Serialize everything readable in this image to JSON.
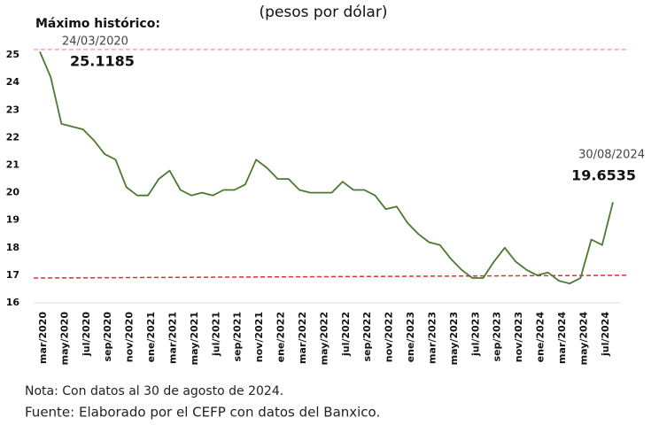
{
  "chart_data": {
    "type": "line",
    "title": "(pesos por dólar)",
    "categories": [
      "mar/2020",
      null,
      "may/2020",
      null,
      "jul/2020",
      null,
      "sep/2020",
      null,
      "nov/2020",
      null,
      "ene/2021",
      null,
      "mar/2021",
      null,
      "may/2021",
      null,
      "jul/2021",
      null,
      "sep/2021",
      null,
      "nov/2021",
      null,
      "ene/2022",
      null,
      "mar/2022",
      null,
      "may/2022",
      null,
      "jul/2022",
      null,
      "sep/2022",
      null,
      "nov/2022",
      null,
      "ene/2023",
      null,
      "mar/2023",
      null,
      "may/2023",
      null,
      "jul/2023",
      null,
      "sep/2023",
      null,
      "nov/2023",
      null,
      "ene/2024",
      null,
      "mar/2024",
      null,
      "may/2024",
      null,
      "jul/2024",
      null
    ],
    "series": [
      {
        "color": "#4a7a30",
        "values": [
          25.1185,
          24.2,
          22.5,
          22.4,
          22.3,
          21.9,
          21.4,
          21.2,
          20.2,
          19.9,
          19.9,
          20.5,
          20.8,
          20.1,
          19.9,
          20.0,
          19.9,
          20.1,
          20.1,
          20.3,
          21.2,
          20.9,
          20.5,
          20.5,
          20.1,
          20.0,
          20.0,
          20.0,
          20.4,
          20.1,
          20.1,
          19.9,
          19.4,
          19.5,
          18.9,
          18.5,
          18.2,
          18.1,
          17.6,
          17.2,
          16.9,
          16.9,
          17.5,
          18.0,
          17.5,
          17.2,
          17.0,
          17.1,
          16.8,
          16.7,
          16.9,
          18.3,
          18.1,
          19.6535
        ]
      }
    ],
    "reference_lines": [
      {
        "color": "#f4a8b0",
        "values": [
          25.2,
          25.2
        ]
      },
      {
        "color": "#e03030",
        "values": [
          16.9,
          17.0
        ]
      }
    ],
    "annotations": {
      "max_label": "Máximo histórico:",
      "max_date": "24/03/2020",
      "last_date": "30/08/2024"
    },
    "notes": [
      "Nota: Con datos al 30 de agosto de 2024.",
      "Fuente: Elaborado por el CEFP con datos del Banxico."
    ],
    "ylim": [
      16,
      25.3
    ],
    "yticks": [
      16,
      17,
      18,
      19,
      20,
      21,
      22,
      23,
      24,
      25
    ]
  }
}
